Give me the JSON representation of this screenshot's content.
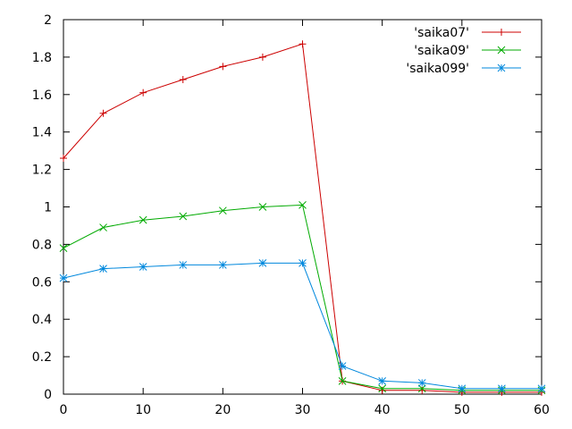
{
  "chart_data": {
    "type": "line",
    "title": "",
    "xlabel": "",
    "ylabel": "",
    "xlim": [
      0,
      60
    ],
    "ylim": [
      0,
      2
    ],
    "xticks": [
      0,
      10,
      20,
      30,
      40,
      50,
      60
    ],
    "yticks": [
      0,
      0.2,
      0.4,
      0.6,
      0.8,
      1,
      1.2,
      1.4,
      1.6,
      1.8,
      2
    ],
    "xtick_labels": [
      "0",
      "10",
      "20",
      "30",
      "40",
      "50",
      "60"
    ],
    "ytick_labels": [
      "0",
      "0.2",
      "0.4",
      "0.6",
      "0.8",
      "1",
      "1.2",
      "1.4",
      "1.6",
      "1.8",
      "2"
    ],
    "grid": false,
    "legend_position": "top-right",
    "x": [
      0,
      5,
      10,
      15,
      20,
      25,
      30,
      35,
      40,
      45,
      50,
      55,
      60
    ],
    "series": [
      {
        "name": "'saika07'",
        "color": "#cc0000",
        "marker": "plus",
        "values": [
          1.26,
          1.5,
          1.61,
          1.68,
          1.75,
          1.8,
          1.87,
          0.07,
          0.02,
          0.02,
          0.01,
          0.01,
          0.01
        ]
      },
      {
        "name": "'saika09'",
        "color": "#00aa00",
        "marker": "cross",
        "values": [
          0.78,
          0.89,
          0.93,
          0.95,
          0.98,
          1.0,
          1.01,
          0.07,
          0.03,
          0.03,
          0.02,
          0.02,
          0.02
        ]
      },
      {
        "name": "'saika099'",
        "color": "#0088dd",
        "marker": "star",
        "values": [
          0.62,
          0.67,
          0.68,
          0.69,
          0.69,
          0.7,
          0.7,
          0.15,
          0.07,
          0.06,
          0.03,
          0.03,
          0.03
        ]
      }
    ]
  }
}
